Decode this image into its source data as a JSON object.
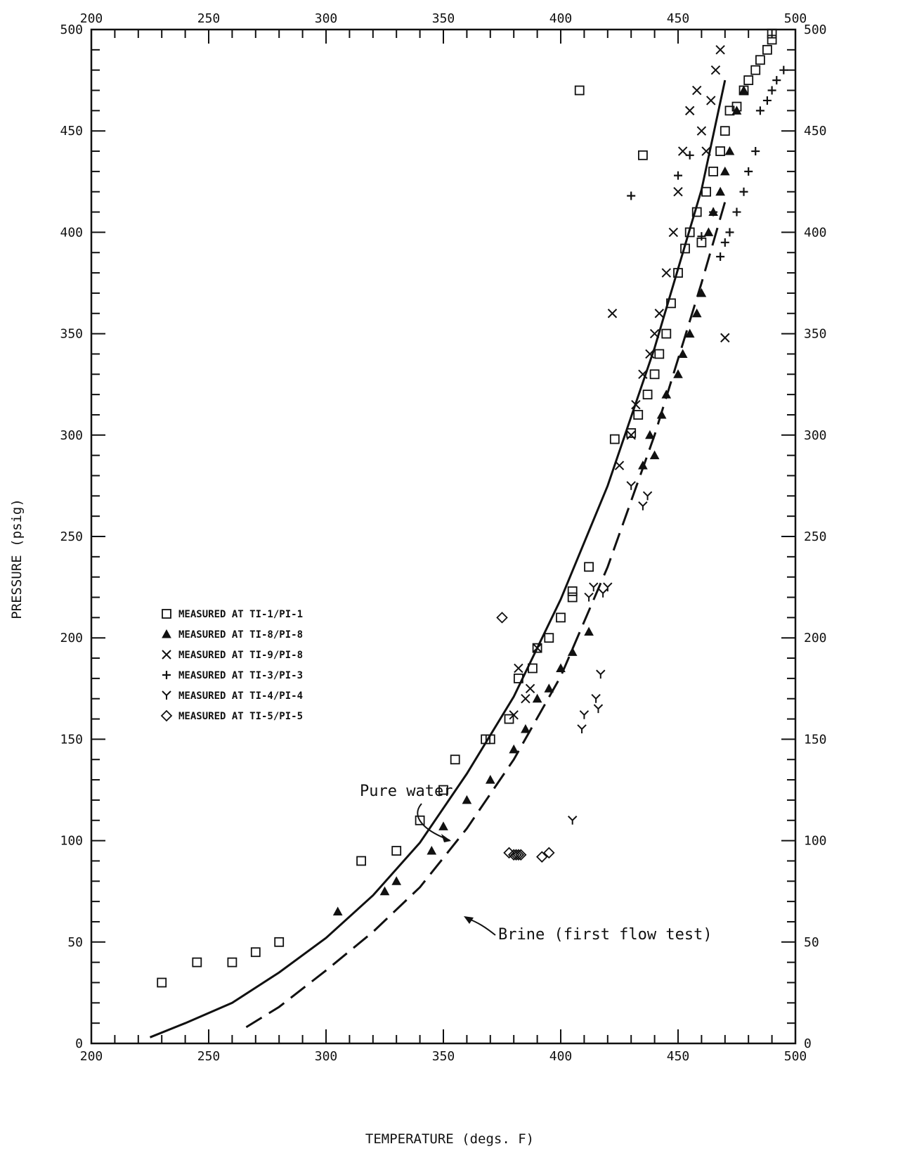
{
  "chart_data": {
    "type": "scatter",
    "title": "",
    "xlabel": "TEMPERATURE (degs. F)",
    "ylabel": "PRESSURE (psig)",
    "xlim": [
      200,
      500
    ],
    "ylim": [
      0,
      500
    ],
    "xticks": [
      "200",
      "250",
      "300",
      "350",
      "400",
      "450",
      "500"
    ],
    "yticks": [
      "0",
      "50",
      "100",
      "150",
      "200",
      "250",
      "300",
      "350",
      "400",
      "450",
      "500"
    ],
    "grid": false,
    "legend_position": "left-middle",
    "curves": [
      {
        "label": "Pure water",
        "style": "solid",
        "x": [
          225,
          240,
          260,
          280,
          300,
          320,
          340,
          360,
          380,
          400,
          420,
          440,
          460,
          470
        ],
        "y": [
          3,
          10,
          20,
          35,
          52,
          73,
          99,
          133,
          171,
          219,
          275,
          343,
          421,
          475
        ]
      },
      {
        "label": "Brine (first flow test)",
        "style": "dashed",
        "x": [
          266,
          280,
          300,
          320,
          340,
          360,
          380,
          400,
          420,
          440,
          460,
          470
        ],
        "y": [
          8,
          18,
          36,
          55,
          77,
          106,
          140,
          181,
          235,
          300,
          375,
          415
        ]
      }
    ],
    "annotations": [
      {
        "text": "Pure water",
        "x": 345,
        "y": 128
      },
      {
        "text": "Brine (first flow test)",
        "x": 350,
        "y": 80
      }
    ],
    "series": [
      {
        "name": "MEASURED AT TI-1/PI-1",
        "marker": "square",
        "x": [
          230,
          245,
          260,
          270,
          280,
          315,
          330,
          340,
          350,
          355,
          368,
          370,
          378,
          382,
          388,
          390,
          395,
          400,
          405,
          405,
          412,
          408,
          435,
          423,
          430,
          433,
          437,
          440,
          442,
          445,
          447,
          450,
          453,
          455,
          458,
          460,
          462,
          465,
          468,
          470,
          472,
          475,
          478,
          480,
          483,
          485,
          488,
          490,
          490
        ],
        "y": [
          30,
          40,
          40,
          45,
          50,
          90,
          95,
          110,
          125,
          140,
          150,
          150,
          160,
          180,
          185,
          195,
          200,
          210,
          220,
          223,
          235,
          470,
          438,
          298,
          301,
          310,
          320,
          330,
          340,
          350,
          365,
          380,
          392,
          400,
          410,
          395,
          420,
          430,
          440,
          450,
          460,
          462,
          470,
          475,
          480,
          485,
          490,
          495,
          498
        ]
      },
      {
        "name": "MEASURED AT TI-8/PI-8",
        "marker": "triangle",
        "x": [
          305,
          325,
          330,
          345,
          350,
          360,
          370,
          380,
          385,
          390,
          395,
          400,
          405,
          412,
          435,
          438,
          440,
          443,
          445,
          450,
          452,
          455,
          458,
          460,
          463,
          465,
          468,
          470,
          472,
          475,
          478
        ],
        "y": [
          65,
          75,
          80,
          95,
          107,
          120,
          130,
          145,
          155,
          170,
          175,
          185,
          193,
          203,
          285,
          300,
          290,
          310,
          320,
          330,
          340,
          350,
          360,
          370,
          400,
          410,
          420,
          430,
          440,
          460,
          470
        ]
      },
      {
        "name": "MEASURED AT TI-9/PI-8",
        "marker": "x",
        "x": [
          380,
          382,
          385,
          387,
          390,
          422,
          425,
          430,
          432,
          435,
          438,
          440,
          442,
          445,
          448,
          450,
          452,
          455,
          458,
          460,
          462,
          464,
          466,
          468,
          470
        ],
        "y": [
          162,
          185,
          170,
          175,
          195,
          360,
          285,
          300,
          315,
          330,
          340,
          350,
          360,
          380,
          400,
          420,
          440,
          460,
          470,
          450,
          440,
          465,
          480,
          490,
          348
        ]
      },
      {
        "name": "MEASURED AT TI-3/PI-3",
        "marker": "plus",
        "x": [
          430,
          450,
          455,
          460,
          465,
          468,
          470,
          472,
          475,
          478,
          480,
          483,
          485,
          488,
          490,
          492,
          495
        ],
        "y": [
          418,
          428,
          438,
          398,
          410,
          388,
          395,
          400,
          410,
          420,
          430,
          440,
          460,
          465,
          470,
          475,
          480
        ]
      },
      {
        "name": "MEASURED AT TI-4/PI-4",
        "marker": "y",
        "x": [
          405,
          409,
          410,
          412,
          414,
          415,
          416,
          417,
          418,
          420,
          430,
          435,
          437
        ],
        "y": [
          110,
          155,
          162,
          220,
          225,
          170,
          165,
          182,
          222,
          225,
          275,
          265,
          270
        ]
      },
      {
        "name": "MEASURED AT TI-5/PI-5",
        "marker": "diamond",
        "x": [
          375,
          378,
          380,
          381,
          382,
          383,
          392,
          395
        ],
        "y": [
          210,
          94,
          93,
          93,
          93,
          93,
          92,
          94
        ]
      }
    ]
  }
}
